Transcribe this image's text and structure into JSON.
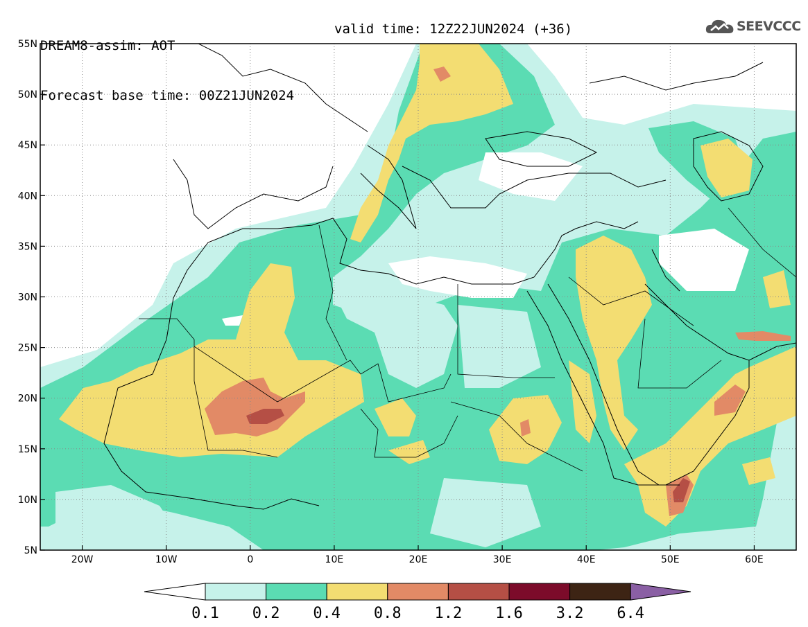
{
  "header": {
    "title": "DREAM8-assim: AOT",
    "base_time": "Forecast base time: 00Z21JUN2024",
    "valid_time": "valid time: 12Z22JUN2024 (+36)"
  },
  "logo": {
    "text": "SEEVCCC",
    "icon": "cloud-icon"
  },
  "map": {
    "lon_range": [
      -25,
      65
    ],
    "lat_range": [
      5,
      55
    ],
    "lon_ticks": [
      {
        "value": -20,
        "label": "20W"
      },
      {
        "value": -10,
        "label": "10W"
      },
      {
        "value": 0,
        "label": "0"
      },
      {
        "value": 10,
        "label": "10E"
      },
      {
        "value": 20,
        "label": "20E"
      },
      {
        "value": 30,
        "label": "30E"
      },
      {
        "value": 40,
        "label": "40E"
      },
      {
        "value": 50,
        "label": "50E"
      },
      {
        "value": 60,
        "label": "60E"
      }
    ],
    "lat_ticks": [
      {
        "value": 5,
        "label": "5N"
      },
      {
        "value": 10,
        "label": "10N"
      },
      {
        "value": 15,
        "label": "15N"
      },
      {
        "value": 20,
        "label": "20N"
      },
      {
        "value": 25,
        "label": "25N"
      },
      {
        "value": 30,
        "label": "30N"
      },
      {
        "value": 35,
        "label": "35N"
      },
      {
        "value": 40,
        "label": "40N"
      },
      {
        "value": 45,
        "label": "45N"
      },
      {
        "value": 50,
        "label": "50N"
      },
      {
        "value": 55,
        "label": "55N"
      }
    ],
    "grid": "dotted"
  },
  "colorbar": {
    "labels": [
      "0.1",
      "0.2",
      "0.4",
      "0.8",
      "1.2",
      "1.6",
      "3.2",
      "6.4"
    ],
    "colors": [
      "#ffffff",
      "#c6f2ea",
      "#5bdcb3",
      "#f3dd72",
      "#e28a66",
      "#b54f45",
      "#7c0b2a",
      "#3d2414",
      "#8a5fa4"
    ]
  }
}
